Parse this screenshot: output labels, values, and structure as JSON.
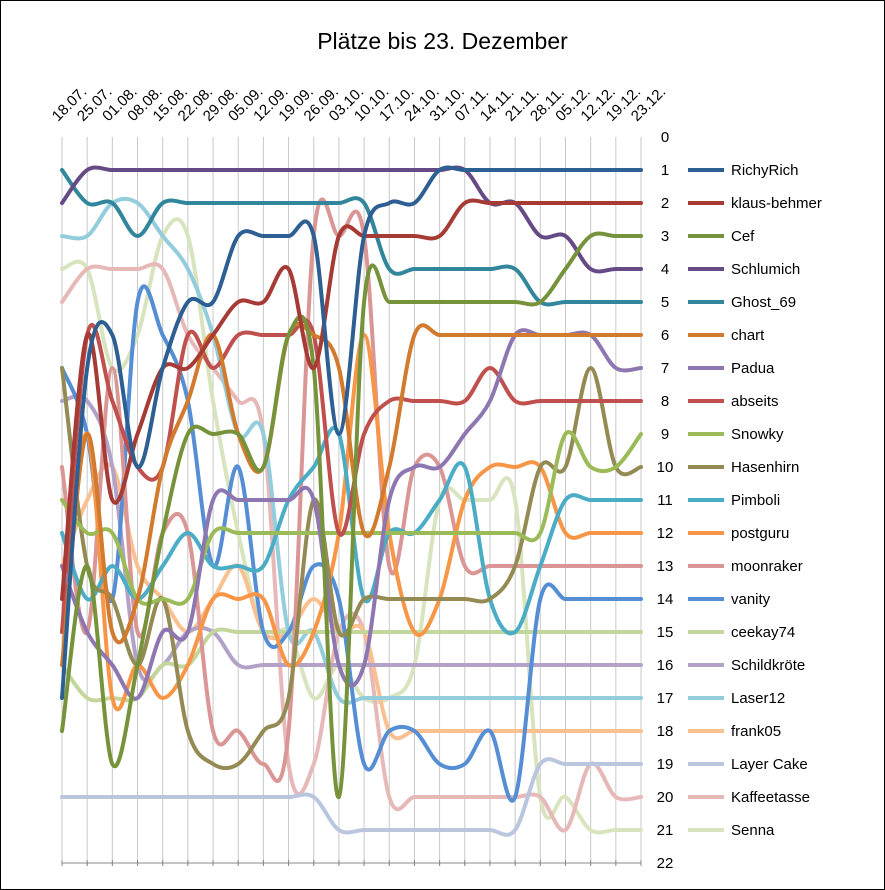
{
  "chart_data": {
    "type": "line",
    "title": "Plätze bis 23. Dezember",
    "ylabel": "",
    "xlabel": "",
    "ylim": [
      0,
      22
    ],
    "y_reversed": true,
    "y_ticks": [
      "0",
      "1",
      "2",
      "3",
      "4",
      "5",
      "6",
      "7",
      "8",
      "9",
      "10",
      "11",
      "12",
      "13",
      "14",
      "15",
      "16",
      "17",
      "18",
      "19",
      "20",
      "21",
      "22"
    ],
    "categories": [
      "18.07.",
      "25.07.",
      "01.08.",
      "08.08.",
      "15.08.",
      "22.08.",
      "29.08.",
      "05.09.",
      "12.09.",
      "19.09.",
      "26.09.",
      "03.10.",
      "10.10.",
      "17.10.",
      "24.10.",
      "31.10.",
      "07.11.",
      "14.11.",
      "21.11.",
      "28.11.",
      "05.12.",
      "12.12.",
      "19.12.",
      "23.12."
    ],
    "grid": "vertical",
    "legend_position": "right",
    "series": [
      {
        "name": "RichyRich",
        "color": "#2E5F93",
        "values": [
          17,
          7,
          6,
          10,
          7,
          5,
          5,
          3,
          3,
          3,
          3,
          9,
          3,
          2,
          2,
          1,
          1,
          1,
          1,
          1,
          1,
          1,
          1,
          1
        ]
      },
      {
        "name": "klaus-behmer",
        "color": "#A63A35",
        "values": [
          14,
          6,
          11,
          9,
          7,
          7,
          6,
          5,
          5,
          4,
          7,
          3,
          3,
          3,
          3,
          3,
          2,
          2,
          2,
          2,
          2,
          2,
          2,
          2
        ]
      },
      {
        "name": "Cef",
        "color": "#76933C",
        "values": [
          18,
          13,
          19,
          16,
          12,
          9,
          9,
          9,
          10,
          6,
          7,
          20,
          5,
          5,
          5,
          5,
          5,
          5,
          5,
          5,
          4,
          3,
          3,
          3
        ]
      },
      {
        "name": "Schlumich",
        "color": "#654A85",
        "values": [
          2,
          1,
          1,
          1,
          1,
          1,
          1,
          1,
          1,
          1,
          1,
          1,
          1,
          1,
          1,
          1,
          1,
          2,
          2,
          3,
          3,
          4,
          4,
          4
        ]
      },
      {
        "name": "Ghost_69",
        "color": "#31869B",
        "values": [
          1,
          2,
          2,
          3,
          2,
          2,
          2,
          2,
          2,
          2,
          2,
          2,
          2,
          4,
          4,
          4,
          4,
          4,
          4,
          5,
          5,
          5,
          5,
          5
        ]
      },
      {
        "name": "chart",
        "color": "#D27A2E",
        "values": [
          16,
          9,
          15,
          14,
          10,
          8,
          6,
          9,
          10,
          6,
          6,
          7,
          12,
          10,
          6,
          6,
          6,
          6,
          6,
          6,
          6,
          6,
          6,
          6
        ]
      },
      {
        "name": "Padua",
        "color": "#8E76B0",
        "values": [
          13,
          15,
          16,
          17,
          15,
          15,
          11,
          11,
          11,
          11,
          11,
          16,
          16,
          11,
          10,
          10,
          9,
          8,
          6,
          6,
          6,
          6,
          7,
          7
        ]
      },
      {
        "name": "abseits",
        "color": "#C0504D",
        "values": [
          15,
          6,
          8,
          10,
          10,
          6,
          7,
          6,
          6,
          6,
          6,
          12,
          9,
          8,
          8,
          8,
          8,
          7,
          8,
          8,
          8,
          8,
          8,
          8
        ]
      },
      {
        "name": "Snowky",
        "color": "#9BBB59",
        "values": [
          11,
          12,
          12,
          14,
          14,
          14,
          12,
          12,
          12,
          12,
          12,
          12,
          12,
          12,
          12,
          12,
          12,
          12,
          12,
          12,
          9,
          10,
          10,
          9
        ]
      },
      {
        "name": "Hasenhirn",
        "color": "#948A54",
        "values": [
          7,
          13,
          14,
          16,
          14,
          18,
          19,
          19,
          18,
          17,
          11,
          15,
          14,
          14,
          14,
          14,
          14,
          14,
          13,
          10,
          10,
          7,
          10,
          10
        ]
      },
      {
        "name": "Pimboli",
        "color": "#4BACC6",
        "values": [
          12,
          14,
          13,
          14,
          13,
          12,
          13,
          13,
          13,
          11,
          10,
          9,
          14,
          12,
          12,
          11,
          10,
          14,
          15,
          13,
          11,
          11,
          11,
          11
        ]
      },
      {
        "name": "postguru",
        "color": "#F79646",
        "values": [
          15,
          9,
          17,
          16,
          17,
          16,
          14,
          14,
          14,
          16,
          15,
          12,
          6,
          12,
          15,
          14,
          11,
          10,
          10,
          10,
          12,
          12,
          12,
          12
        ]
      },
      {
        "name": "moonraker",
        "color": "#DA9694",
        "values": [
          10,
          15,
          7,
          15,
          12,
          12,
          18,
          18,
          19,
          18,
          3,
          3,
          3,
          13,
          10,
          10,
          13,
          13,
          13,
          13,
          13,
          13,
          13,
          13
        ]
      },
      {
        "name": "vanity",
        "color": "#558ED5",
        "values": [
          7,
          9,
          14,
          5,
          6,
          8,
          13,
          10,
          15,
          15,
          13,
          14,
          19,
          18,
          18,
          19,
          19,
          18,
          20,
          14,
          14,
          14,
          14,
          14
        ]
      },
      {
        "name": "ceekay74",
        "color": "#C3D69B",
        "values": [
          16,
          17,
          17,
          17,
          16,
          16,
          15,
          15,
          15,
          15,
          15,
          15,
          15,
          15,
          15,
          15,
          15,
          15,
          15,
          15,
          15,
          15,
          15,
          15
        ]
      },
      {
        "name": "Schildkröte",
        "color": "#B3A2C7",
        "values": [
          8,
          8,
          10,
          16,
          16,
          15,
          15,
          16,
          16,
          16,
          16,
          16,
          16,
          16,
          16,
          16,
          16,
          16,
          16,
          16,
          16,
          16,
          16,
          16
        ]
      },
      {
        "name": "Laser12",
        "color": "#93CDDD",
        "values": [
          3,
          3,
          2,
          2,
          3,
          4,
          6,
          9,
          9,
          15,
          15,
          17,
          17,
          17,
          17,
          17,
          17,
          17,
          17,
          17,
          17,
          17,
          17,
          17
        ]
      },
      {
        "name": "frank05",
        "color": "#FAC090",
        "values": [
          13,
          11,
          10,
          13,
          14,
          15,
          14,
          13,
          15,
          15,
          14,
          15,
          15,
          18,
          18,
          18,
          18,
          18,
          18,
          18,
          18,
          18,
          18,
          18
        ]
      },
      {
        "name": "Layer Cake",
        "color": "#B9C6DE",
        "values": [
          20,
          20,
          20,
          20,
          20,
          20,
          20,
          20,
          20,
          20,
          20,
          21,
          21,
          21,
          21,
          21,
          21,
          21,
          21,
          19,
          19,
          19,
          19,
          19
        ]
      },
      {
        "name": "Kaffeetasse",
        "color": "#E6B9B8",
        "values": [
          5,
          4,
          4,
          4,
          4,
          6,
          7,
          8,
          9,
          19,
          19,
          15,
          15,
          20,
          20,
          20,
          20,
          20,
          20,
          20,
          21,
          19,
          20,
          20
        ]
      },
      {
        "name": "Senna",
        "color": "#D7E4BD",
        "values": [
          4,
          4,
          7,
          6,
          3,
          3,
          8,
          12,
          15,
          15,
          17,
          16,
          17,
          17,
          16,
          11,
          11,
          11,
          11,
          20,
          20,
          21,
          21,
          21
        ]
      }
    ]
  }
}
